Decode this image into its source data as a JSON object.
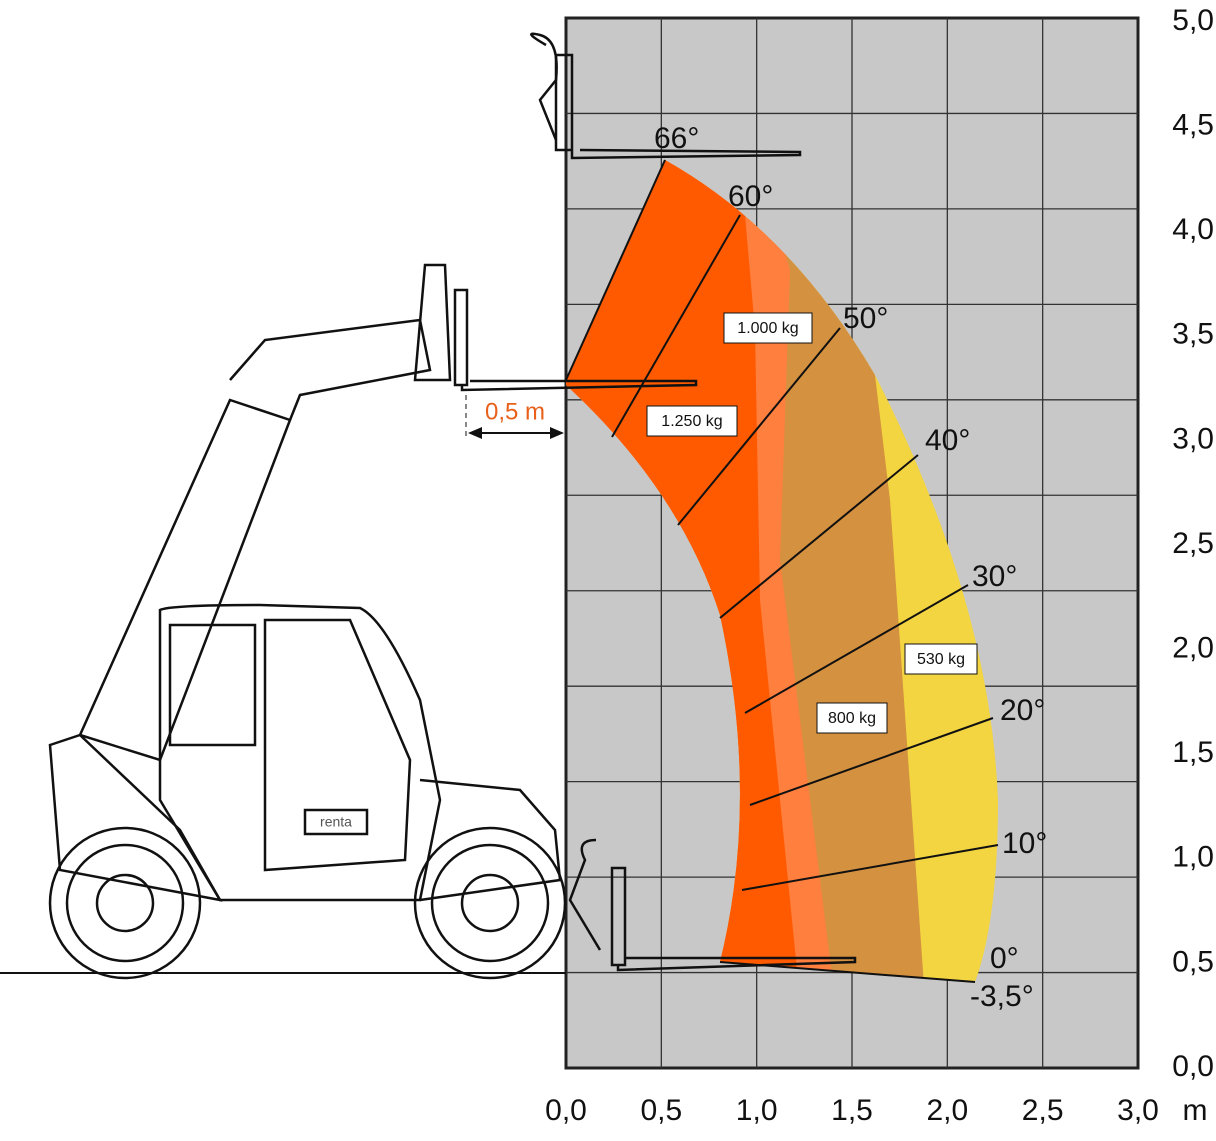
{
  "x_axis": {
    "labels": [
      "0,0",
      "0,5",
      "1,0",
      "1,5",
      "2,0",
      "2,5",
      "3,0"
    ],
    "unit": "m"
  },
  "y_axis": {
    "labels": [
      "5,0",
      "4,5",
      "4,0",
      "3,5",
      "3,0",
      "2,5",
      "2,0",
      "1,5",
      "1,0",
      "0,5",
      "0,0"
    ]
  },
  "angles": [
    "66°",
    "60°",
    "50°",
    "40°",
    "30°",
    "20°",
    "10°",
    "0°",
    "-3,5°"
  ],
  "loads": [
    "1.000 kg",
    "1.250 kg",
    "800 kg",
    "530 kg"
  ],
  "dimension": "0,5 m",
  "brand": "renta"
}
